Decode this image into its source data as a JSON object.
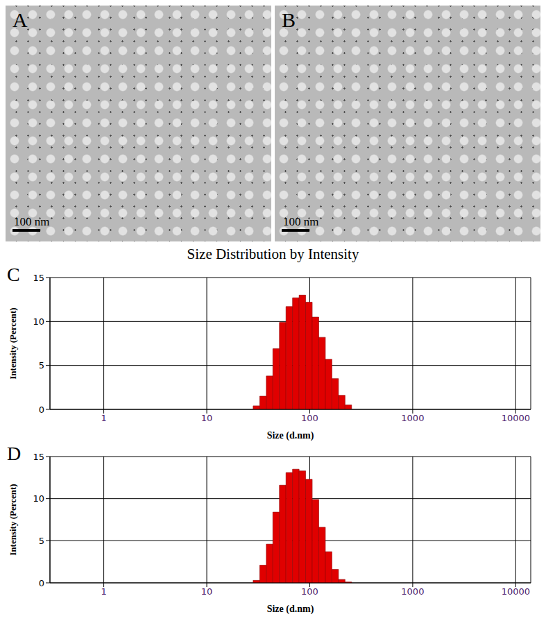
{
  "images": [
    {
      "label": "A",
      "scale_bar": "100 nm"
    },
    {
      "label": "B",
      "scale_bar": "100 nm"
    }
  ],
  "chart_data": [
    {
      "type": "histogram",
      "label": "C",
      "title": "Size Distribution by Intensity",
      "x_label": "Size (d.nm)",
      "y_label": "Intensity (Percent)",
      "bins": [
        28.21,
        32.67,
        37.84,
        43.82,
        50.75,
        58.77,
        68.06,
        78.82,
        91.28,
        105.7,
        122.4,
        141.8,
        164.2,
        190.1,
        220.2,
        255.0
      ],
      "counts": [
        0.4,
        1.5,
        3.8,
        6.9,
        9.9,
        11.7,
        12.7,
        13.0,
        12.2,
        10.5,
        8.2,
        5.7,
        3.5,
        1.6,
        0.5
      ],
      "color": "#e00000",
      "xlim": [
        0.3,
        14000
      ],
      "ylim": [
        0,
        15
      ],
      "xticks": [
        1,
        10,
        100,
        1000,
        10000
      ],
      "yticks": [
        0,
        5,
        10,
        15
      ],
      "log": "x",
      "grid": true
    },
    {
      "type": "histogram",
      "label": "D",
      "x_label": "Size (d.nm)",
      "y_label": "Intensity (Percent)",
      "bins": [
        28.21,
        32.67,
        37.84,
        43.82,
        50.75,
        58.77,
        68.06,
        78.82,
        91.28,
        105.7,
        122.4,
        141.8,
        164.2,
        190.1,
        220.2,
        255.0
      ],
      "counts": [
        0.3,
        2.1,
        4.6,
        8.4,
        11.6,
        13.1,
        13.5,
        13.3,
        12.3,
        9.9,
        6.6,
        3.7,
        1.6,
        0.4,
        0.1
      ],
      "color": "#e00000",
      "xlim": [
        0.3,
        14000
      ],
      "ylim": [
        0,
        15
      ],
      "xticks": [
        1,
        10,
        100,
        1000,
        10000
      ],
      "yticks": [
        0,
        5,
        10,
        15
      ],
      "log": "x",
      "grid": true
    }
  ]
}
